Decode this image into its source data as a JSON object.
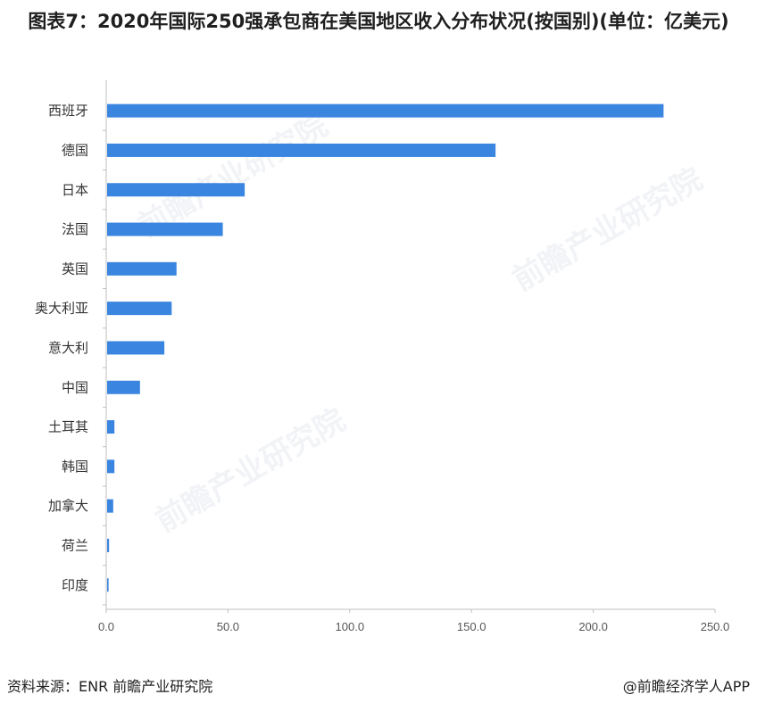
{
  "header": {
    "title": "图表7：2020年国际250强承包商在美国地区收入分布状况(按国别)(单位：亿美元)"
  },
  "footer": {
    "source": "资料来源：ENR 前瞻产业研究院",
    "brand": "@前瞻经济学人APP"
  },
  "watermark": {
    "text": "前瞻产业研究院"
  },
  "colors": {
    "bar": "#3a85e0",
    "axis": "#bfbfbf"
  },
  "chart_data": {
    "type": "bar",
    "orientation": "horizontal",
    "title": "图表7：2020年国际250强承包商在美国地区收入分布状况(按国别)(单位：亿美元)",
    "categories": [
      "西班牙",
      "德国",
      "日本",
      "法国",
      "英国",
      "奥大利亚",
      "意大利",
      "中国",
      "土耳其",
      "韩国",
      "加拿大",
      "荷兰",
      "印度"
    ],
    "values": [
      228.5,
      159.5,
      56.5,
      47.5,
      28.5,
      26.5,
      23.5,
      13.5,
      3.0,
      3.0,
      2.5,
      0.8,
      0.6
    ],
    "xlim": [
      0,
      250
    ],
    "xticks": [
      "0.0",
      "50.0",
      "100.0",
      "150.0",
      "200.0",
      "250.0"
    ],
    "xtick_values": [
      0,
      50,
      100,
      150,
      200,
      250
    ],
    "grid": false,
    "legend": "none"
  }
}
